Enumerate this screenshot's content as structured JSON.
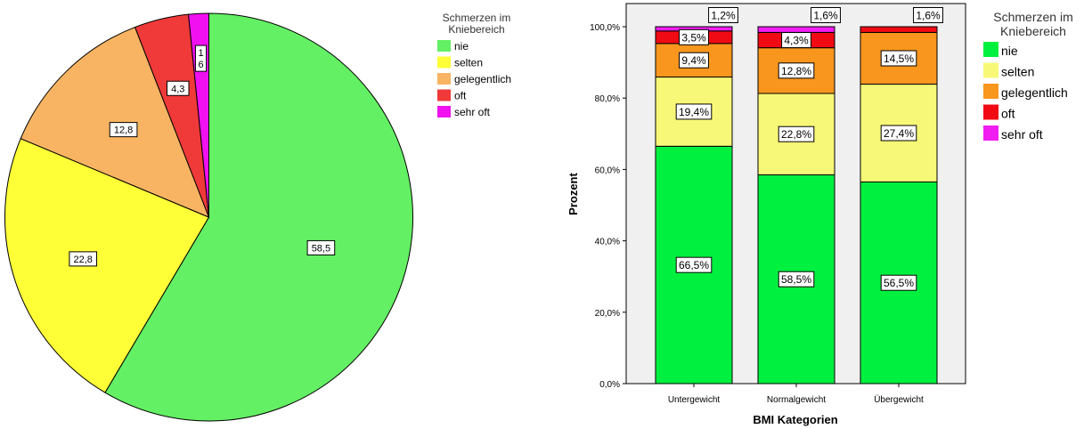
{
  "chart_data": [
    {
      "type": "pie",
      "legend_title_lines": [
        "Schmerzen im",
        "Kniebereich"
      ],
      "legend_position": "top-right",
      "slices": [
        {
          "name": "nie",
          "value": 58.5,
          "label": "58,5",
          "color": "#64f064"
        },
        {
          "name": "selten",
          "value": 22.8,
          "label": "22,8",
          "color": "#ffff38"
        },
        {
          "name": "gelegentlich",
          "value": 12.8,
          "label": "12,8",
          "color": "#f8b462"
        },
        {
          "name": "oft",
          "value": 4.3,
          "label": "4,3",
          "color": "#f03a3a"
        },
        {
          "name": "sehr oft",
          "value": 1.6,
          "label_lines": [
            "1",
            "6"
          ],
          "color": "#f010f0"
        }
      ]
    },
    {
      "type": "bar",
      "stacked": true,
      "xlabel": "BMI Kategorien",
      "ylabel": "Prozent",
      "ylim": [
        0,
        100
      ],
      "yticks": [
        "0,0%",
        "20,0%",
        "40,0%",
        "60,0%",
        "80,0%",
        "100,0%"
      ],
      "categories": [
        "Untergewicht",
        "Normalgewicht",
        "Übergewicht"
      ],
      "legend_title_lines": [
        "Schmerzen im",
        "Kniebereich"
      ],
      "legend_position": "right",
      "series": [
        {
          "name": "nie",
          "color": "#00f040",
          "values": [
            66.5,
            58.5,
            56.5
          ],
          "labels": [
            "66,5%",
            "58,5%",
            "56,5%"
          ]
        },
        {
          "name": "selten",
          "color": "#f8f878",
          "values": [
            19.4,
            22.8,
            27.4
          ],
          "labels": [
            "19,4%",
            "22,8%",
            "27,4%"
          ]
        },
        {
          "name": "gelegentlich",
          "color": "#f8961e",
          "values": [
            9.4,
            12.8,
            14.5
          ],
          "labels": [
            "9,4%",
            "12,8%",
            "14,5%"
          ]
        },
        {
          "name": "oft",
          "color": "#f00a14",
          "values": [
            3.5,
            4.3,
            1.6
          ],
          "labels": [
            "3,5%",
            "4,3%",
            "1,6%"
          ]
        },
        {
          "name": "sehr oft",
          "color": "#f01ef0",
          "values": [
            1.2,
            1.6,
            0
          ],
          "labels": [
            "1,2%",
            "1,6%",
            ""
          ]
        }
      ]
    }
  ]
}
